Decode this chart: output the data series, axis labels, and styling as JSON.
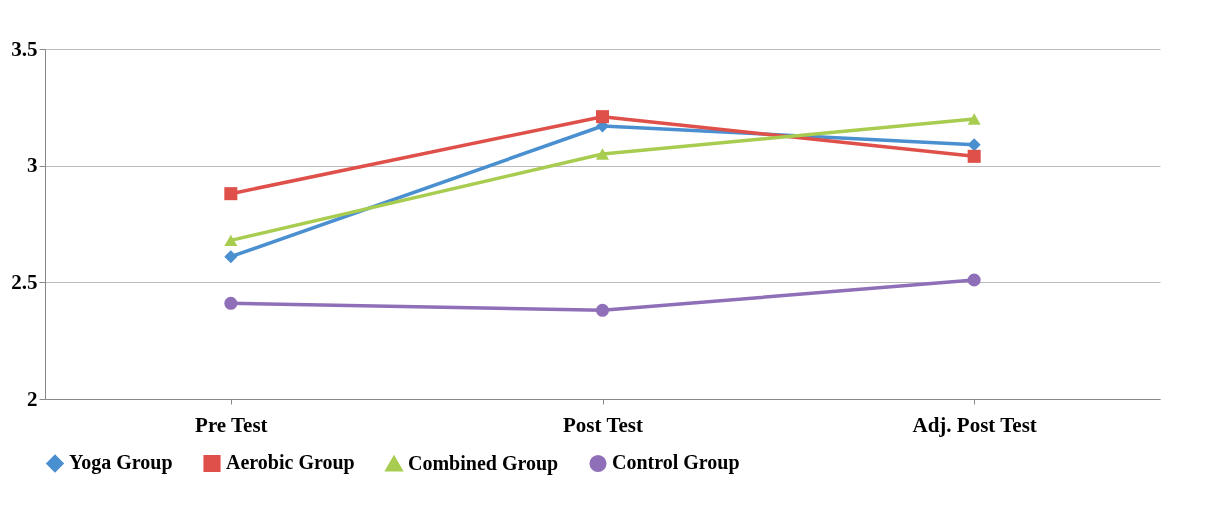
{
  "chart_data": {
    "type": "line",
    "categories": [
      "Pre Test",
      "Post Test",
      "Adj. Post Test"
    ],
    "series": [
      {
        "name": "Yoga Group",
        "color": "#4a8fd0",
        "marker": "diamond",
        "values": [
          2.61,
          3.17,
          3.09
        ]
      },
      {
        "name": "Aerobic Group",
        "color": "#e0504a",
        "marker": "square",
        "values": [
          2.88,
          3.21,
          3.04
        ]
      },
      {
        "name": "Combined Group",
        "color": "#a8cc50",
        "marker": "triangle",
        "values": [
          2.68,
          3.05,
          3.2
        ]
      },
      {
        "name": "Control Group",
        "color": "#8f6fb8",
        "marker": "circle",
        "values": [
          2.41,
          2.38,
          2.51
        ]
      }
    ],
    "ylim": [
      2,
      3.5
    ],
    "yticks": [
      2,
      2.5,
      3,
      3.5
    ],
    "grid": "y",
    "legend": "bottom",
    "line_style": "solid"
  }
}
